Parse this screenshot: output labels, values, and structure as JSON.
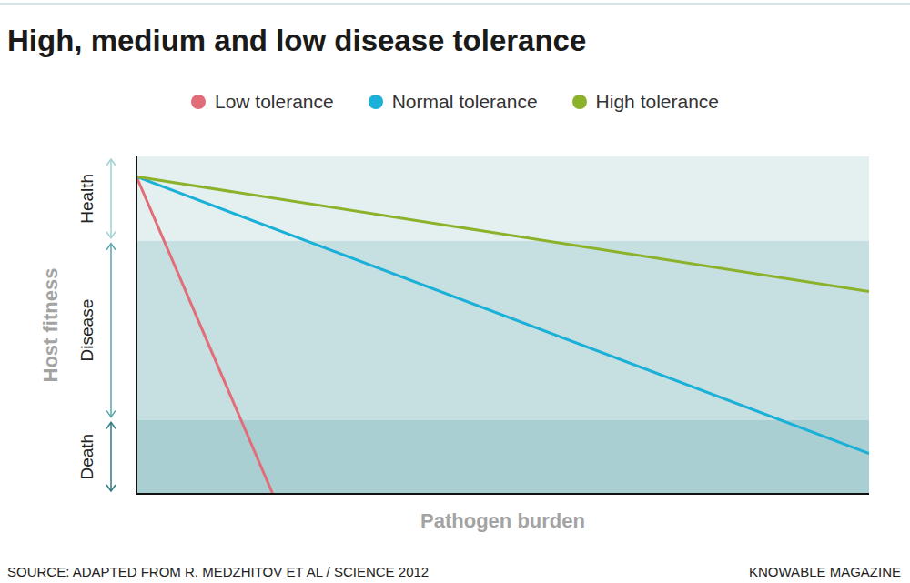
{
  "chart_data": {
    "type": "line",
    "title": "High, medium and low disease tolerance",
    "x_label": "Pathogen burden",
    "y_label": "Host fitness",
    "xlim": [
      0,
      100
    ],
    "ylim": [
      0,
      100
    ],
    "tick_labels": false,
    "grid": false,
    "legend": "top",
    "bands": [
      {
        "label": "Health",
        "from": 75,
        "to": 100,
        "color": "#e4f0f0"
      },
      {
        "label": "Disease",
        "from": 22,
        "to": 75,
        "color": "#c6dfe0"
      },
      {
        "label": "Death",
        "from": 0,
        "to": 22,
        "color": "#aacfd3"
      }
    ],
    "series": [
      {
        "name": "Low tolerance",
        "color": "#e26d78",
        "x": [
          0,
          18.6
        ],
        "values": [
          94,
          0
        ]
      },
      {
        "name": "Normal tolerance",
        "color": "#1ab0d8",
        "x": [
          0,
          100
        ],
        "values": [
          94,
          12
        ]
      },
      {
        "name": "High tolerance",
        "color": "#8cb22b",
        "x": [
          0,
          100
        ],
        "values": [
          94,
          60
        ]
      }
    ],
    "source": "SOURCE: ADAPTED FROM R. MEDZHITOV ET AL / SCIENCE 2012",
    "credit": "KNOWABLE MAGAZINE"
  }
}
